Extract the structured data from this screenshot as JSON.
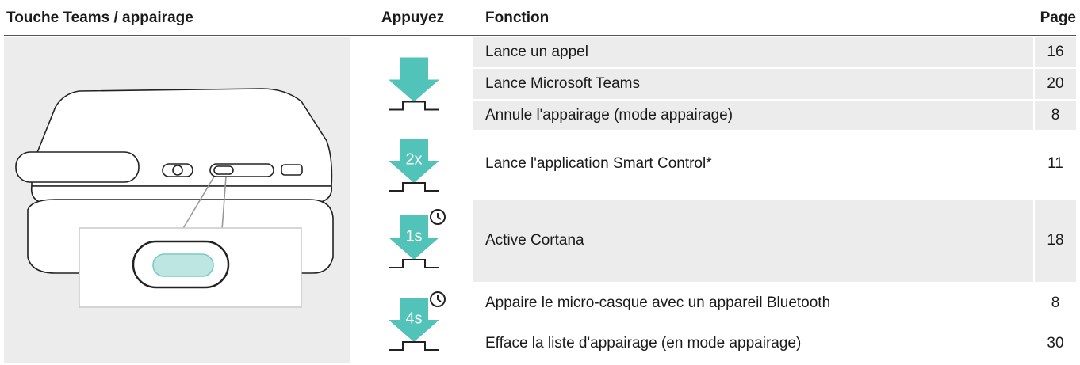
{
  "header": [
    "Touche Teams / appairage",
    "Appuyez",
    "Fonction",
    "Page"
  ],
  "groups": [
    {
      "press": null,
      "rows": [
        {
          "function": "Lance un appel",
          "page": 16
        },
        {
          "function": "Lance Microsoft Teams",
          "page": 20
        },
        {
          "function": "Annule l'appairage (mode appairage)",
          "page": 8
        }
      ]
    },
    {
      "press": "2x",
      "rows": [
        {
          "function": "Lance l'application Smart Control*",
          "page": 11
        }
      ]
    },
    {
      "press": "1s",
      "rows": [
        {
          "function": "Active Cortana",
          "page": 18
        }
      ]
    },
    {
      "press": "4s",
      "rows": [
        {
          "function": "Appaire le micro-casque avec un appareil Bluetooth",
          "page": 8
        },
        {
          "function": "Efface la liste d'appairage (en mode appairage)",
          "page": 30
        }
      ]
    }
  ]
}
